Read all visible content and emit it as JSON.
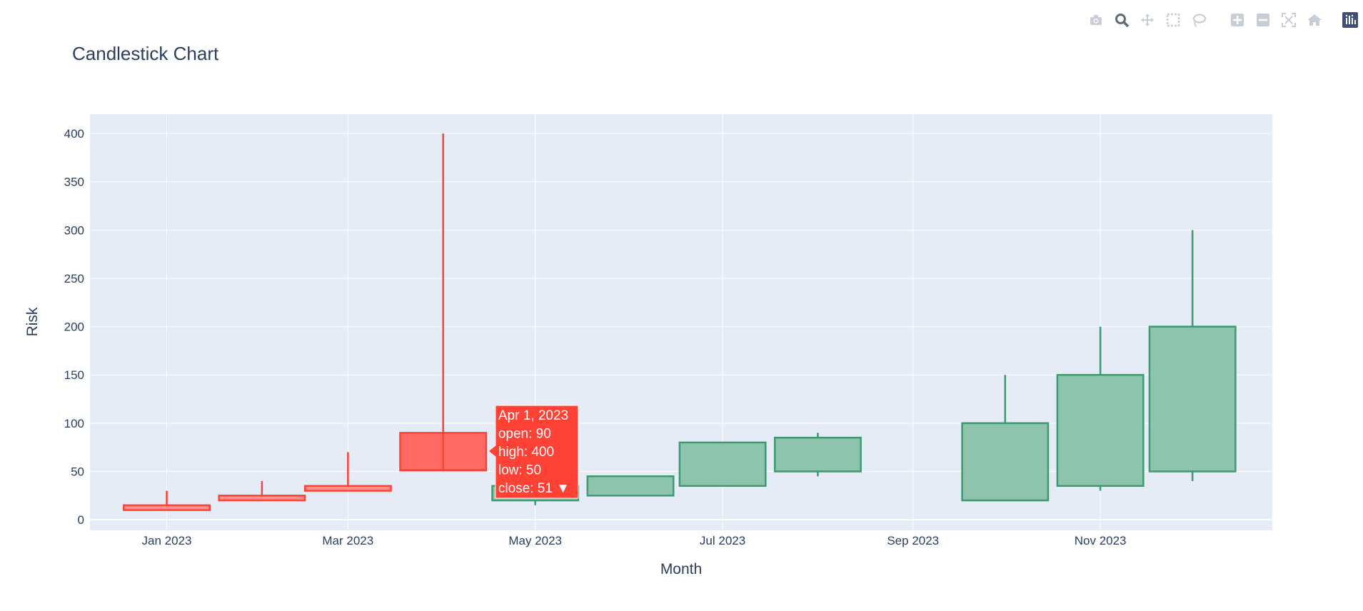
{
  "toolbar": {
    "buttons": [
      {
        "name": "camera-icon",
        "title": "Download plot as a png"
      },
      {
        "name": "zoom-icon",
        "title": "Zoom"
      },
      {
        "name": "pan-icon",
        "title": "Pan"
      },
      {
        "name": "box-select-icon",
        "title": "Box Select"
      },
      {
        "name": "lasso-select-icon",
        "title": "Lasso Select"
      },
      {
        "name": "zoom-in-icon",
        "title": "Zoom in"
      },
      {
        "name": "zoom-out-icon",
        "title": "Zoom out"
      },
      {
        "name": "autoscale-icon",
        "title": "Autoscale"
      },
      {
        "name": "reset-axes-icon",
        "title": "Reset axes"
      },
      {
        "name": "plotly-logo-icon",
        "title": "Produced with Plotly"
      }
    ],
    "active": "zoom-icon"
  },
  "chart_data": {
    "type": "candlestick",
    "title": "Candlestick Chart",
    "xlabel": "Month",
    "ylabel": "Risk",
    "x_tick_labels": [
      "Jan 2023",
      "Mar 2023",
      "May 2023",
      "Jul 2023",
      "Sep 2023",
      "Nov 2023"
    ],
    "x_tick_dates": [
      "2023-01-01",
      "2023-03-01",
      "2023-05-01",
      "2023-07-01",
      "2023-09-01",
      "2023-11-01"
    ],
    "xlim": [
      "2022-12-07",
      "2023-12-27"
    ],
    "y_ticks": [
      0,
      50,
      100,
      150,
      200,
      250,
      300,
      350,
      400
    ],
    "ylim": [
      -11,
      420
    ],
    "grid": true,
    "colors": {
      "increasing": "#3d9970",
      "increasing_fill": "#8ec3ae",
      "decreasing": "#ff4136",
      "decreasing_fill": "#ff8f88",
      "plot_bg": "#e5ecf6",
      "text": "#2a3f5f"
    },
    "candles": [
      {
        "date": "2023-01-01",
        "open": 15,
        "high": 30,
        "low": 10,
        "close": 10
      },
      {
        "date": "2023-02-01",
        "open": 25,
        "high": 40,
        "low": 20,
        "close": 20
      },
      {
        "date": "2023-03-01",
        "open": 35,
        "high": 70,
        "low": 30,
        "close": 30
      },
      {
        "date": "2023-04-01",
        "open": 90,
        "high": 400,
        "low": 50,
        "close": 51
      },
      {
        "date": "2023-05-01",
        "open": 20,
        "high": 35,
        "low": 15,
        "close": 35
      },
      {
        "date": "2023-06-01",
        "open": 25,
        "high": 45,
        "low": 25,
        "close": 45
      },
      {
        "date": "2023-07-01",
        "open": 35,
        "high": 80,
        "low": 35,
        "close": 80
      },
      {
        "date": "2023-08-01",
        "open": 50,
        "high": 90,
        "low": 45,
        "close": 85
      },
      {
        "date": "2023-10-01",
        "open": 20,
        "high": 150,
        "low": 20,
        "close": 100
      },
      {
        "date": "2023-11-01",
        "open": 35,
        "high": 200,
        "low": 30,
        "close": 150
      },
      {
        "date": "2023-12-01",
        "open": 50,
        "high": 300,
        "low": 40,
        "close": 200
      }
    ],
    "hover": {
      "candle_index": 3,
      "lines": [
        "Apr 1, 2023",
        "open: 90",
        "high: 400",
        "low: 50",
        "close: 51 ▼"
      ]
    }
  }
}
